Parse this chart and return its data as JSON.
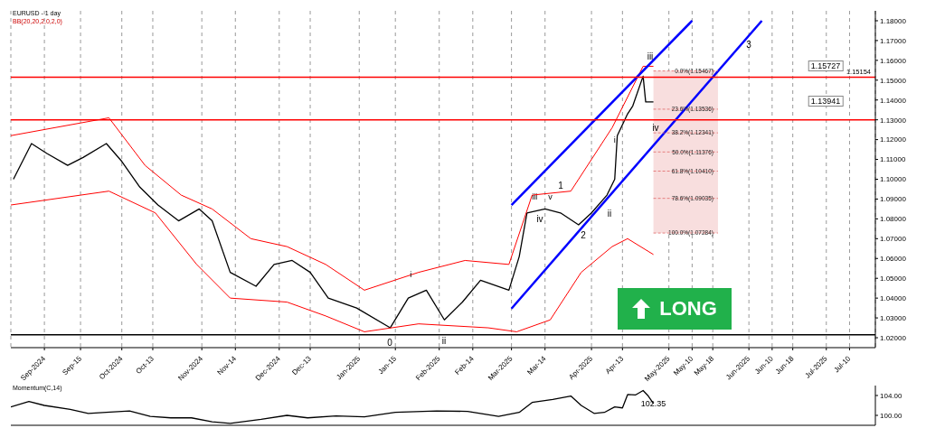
{
  "chart_data": [
    {
      "type": "line",
      "title": "EURUSD - 1 day",
      "subtitle": "BB(20,20,2,0,2,0)",
      "grid": "x",
      "xlim": [
        "2024-08-19",
        "2025-07-20"
      ],
      "xticks": [
        {
          "value": "2024-09-01",
          "label": "Sep-2024"
        },
        {
          "value": "2024-09-15",
          "label": "Sep-15"
        },
        {
          "value": "2024-10-01",
          "label": "Oct-2024"
        },
        {
          "value": "2024-10-13",
          "label": "Oct-13"
        },
        {
          "value": "2024-11-01",
          "label": "Nov-2024"
        },
        {
          "value": "2024-11-14",
          "label": "Nov-14"
        },
        {
          "value": "2024-12-01",
          "label": "Dec-2024"
        },
        {
          "value": "2024-12-13",
          "label": "Dec-13"
        },
        {
          "value": "2025-01-01",
          "label": "Jan-2025"
        },
        {
          "value": "2025-01-15",
          "label": "Jan-15"
        },
        {
          "value": "2025-02-01",
          "label": "Feb-2025"
        },
        {
          "value": "2025-02-14",
          "label": "Feb-14"
        },
        {
          "value": "2025-03-01",
          "label": "Mar-2025"
        },
        {
          "value": "2025-03-14",
          "label": "Mar-14"
        },
        {
          "value": "2025-04-01",
          "label": "Apr-2025"
        },
        {
          "value": "2025-04-13",
          "label": "Apr-13"
        },
        {
          "value": "2025-05-01",
          "label": "May-2025"
        },
        {
          "value": "2025-05-10",
          "label": "May-10"
        },
        {
          "value": "2025-05-18",
          "label": "May-18"
        },
        {
          "value": "2025-06-01",
          "label": "Jun-2025"
        },
        {
          "value": "2025-06-10",
          "label": "Jun-10"
        },
        {
          "value": "2025-06-18",
          "label": "Jun-18"
        },
        {
          "value": "2025-07-01",
          "label": "Jul-2025"
        },
        {
          "value": "2025-07-10",
          "label": "Jul-10"
        }
      ],
      "ylim": [
        1.015,
        1.185
      ],
      "yticks": [
        {
          "value": 1.02,
          "label": "1.02000"
        },
        {
          "value": 1.03,
          "label": "1.03000"
        },
        {
          "value": 1.04,
          "label": "1.04000"
        },
        {
          "value": 1.05,
          "label": "1.05000"
        },
        {
          "value": 1.06,
          "label": "1.06000"
        },
        {
          "value": 1.07,
          "label": "1.07000"
        },
        {
          "value": 1.08,
          "label": "1.08000"
        },
        {
          "value": 1.09,
          "label": "1.09000"
        },
        {
          "value": 1.1,
          "label": "1.10000"
        },
        {
          "value": 1.11,
          "label": "1.11000"
        },
        {
          "value": 1.12,
          "label": "1.12000"
        },
        {
          "value": 1.13,
          "label": "1.13000"
        },
        {
          "value": 1.14,
          "label": "1.14000"
        },
        {
          "value": 1.15,
          "label": "1.15000"
        },
        {
          "value": 1.16,
          "label": "1.16000"
        },
        {
          "value": 1.17,
          "label": "1.17000"
        },
        {
          "value": 1.18,
          "label": "1.18000"
        }
      ],
      "series": [
        {
          "color": "#000000",
          "x": [
            "2024-08-20",
            "2024-08-27",
            "2024-09-02",
            "2024-09-10",
            "2024-09-16",
            "2024-09-25",
            "2024-10-01",
            "2024-10-08",
            "2024-10-15",
            "2024-10-23",
            "2024-10-31",
            "2024-11-05",
            "2024-11-12",
            "2024-11-22",
            "2024-11-29",
            "2024-12-06",
            "2024-12-13",
            "2024-12-20",
            "2024-12-31",
            "2025-01-13",
            "2025-01-20",
            "2025-01-27",
            "2025-02-03",
            "2025-02-10",
            "2025-02-17",
            "2025-02-28",
            "2025-03-04",
            "2025-03-07",
            "2025-03-14",
            "2025-03-20",
            "2025-03-27",
            "2025-04-01",
            "2025-04-07",
            "2025-04-10",
            "2025-04-11",
            "2025-04-15",
            "2025-04-17",
            "2025-04-21",
            "2025-04-22",
            "2025-04-25"
          ],
          "values": [
            1.1,
            1.118,
            1.113,
            1.107,
            1.111,
            1.118,
            1.109,
            1.096,
            1.087,
            1.079,
            1.085,
            1.079,
            1.053,
            1.046,
            1.057,
            1.059,
            1.053,
            1.04,
            1.035,
            1.025,
            1.04,
            1.044,
            1.029,
            1.038,
            1.049,
            1.044,
            1.061,
            1.083,
            1.085,
            1.083,
            1.077,
            1.083,
            1.092,
            1.1,
            1.122,
            1.133,
            1.137,
            1.152,
            1.139,
            1.139
          ]
        },
        {
          "color": "#ff0000",
          "x": [
            "2024-08-19",
            "2024-09-26",
            "2024-10-10",
            "2024-10-24",
            "2024-11-05",
            "2024-11-20",
            "2024-12-04",
            "2024-12-19",
            "2025-01-03",
            "2025-01-24",
            "2025-02-11",
            "2025-02-28",
            "2025-03-09",
            "2025-03-24",
            "2025-04-09",
            "2025-04-21",
            "2025-04-25"
          ],
          "values": [
            1.122,
            1.131,
            1.107,
            1.092,
            1.085,
            1.07,
            1.066,
            1.057,
            1.044,
            1.053,
            1.059,
            1.057,
            1.092,
            1.094,
            1.126,
            1.157,
            1.157
          ]
        },
        {
          "color": "#ff0000",
          "x": [
            "2024-08-19",
            "2024-09-26",
            "2024-10-14",
            "2024-10-30",
            "2024-11-12",
            "2024-12-04",
            "2024-12-19",
            "2025-01-03",
            "2025-01-24",
            "2025-02-20",
            "2025-03-03",
            "2025-03-16",
            "2025-03-28",
            "2025-04-09",
            "2025-04-15",
            "2025-04-25"
          ],
          "values": [
            1.087,
            1.094,
            1.083,
            1.057,
            1.04,
            1.038,
            1.031,
            1.023,
            1.027,
            1.025,
            1.023,
            1.029,
            1.053,
            1.066,
            1.07,
            1.062
          ]
        },
        {
          "color": "#0000ff",
          "x": [
            "2025-03-01",
            "2025-05-10"
          ],
          "values": [
            1.087,
            1.18
          ]
        },
        {
          "color": "#0000ff",
          "x": [
            "2025-03-01",
            "2025-06-06"
          ],
          "values": [
            1.0347,
            1.18
          ]
        }
      ],
      "ref_lines": [
        {
          "axis": "y",
          "value": 1.15154,
          "label": "1.15154",
          "color": "#ff0000"
        },
        {
          "axis": "y",
          "value": 1.13,
          "color": "#ff0000"
        },
        {
          "axis": "y",
          "value": 1.0215,
          "color": "#000000"
        },
        {
          "axis": "y",
          "value": 1.15467,
          "label": "0.0%(1.15467)",
          "color": "#e06666",
          "line_style": "dashed"
        },
        {
          "axis": "y",
          "value": 1.13536,
          "label": "23.6%(1.13536)",
          "color": "#e06666",
          "line_style": "dashed"
        },
        {
          "axis": "y",
          "value": 1.12341,
          "label": "38.2%(1.12341)",
          "color": "#e06666",
          "line_style": "dashed"
        },
        {
          "axis": "y",
          "value": 1.11376,
          "label": "50.0%(1.11376)",
          "color": "#e06666",
          "line_style": "dashed"
        },
        {
          "axis": "y",
          "value": 1.1041,
          "label": "61.8%(1.10410)",
          "color": "#e06666",
          "line_style": "dashed"
        },
        {
          "axis": "y",
          "value": 1.09035,
          "label": "78.6%(1.09035)",
          "color": "#e06666",
          "line_style": "dashed"
        },
        {
          "axis": "y",
          "value": 1.07284,
          "label": "100.0%(1.07284)",
          "color": "#e06666",
          "line_style": "dashed"
        }
      ],
      "bands": [
        {
          "axis": "y",
          "from": 1.07284,
          "to": 1.15467,
          "color": "#f8dede"
        }
      ],
      "annotations": [
        "LONG",
        "0",
        "ii",
        "iv",
        "1",
        "2",
        "ii",
        "iv",
        "3",
        "1.15727",
        "1.13941",
        "iii",
        {
          "text": "i",
          "x": "2025-01-21",
          "y": 1.052
        },
        {
          "text": "iii",
          "x": "2025-03-10",
          "y": 1.091
        },
        {
          "text": "v",
          "x": "2025-03-16",
          "y": 1.091
        },
        {
          "text": "i",
          "x": "2025-04-10",
          "y": 1.12
        }
      ]
    },
    {
      "type": "line",
      "title": "Momentum(C,14)",
      "tick_labels": "y",
      "xlim": [
        "2024-08-19",
        "2025-07-20"
      ],
      "ylim": [
        98,
        106
      ],
      "yticks": [
        {
          "value": 100,
          "label": "100.00"
        },
        {
          "value": 104,
          "label": "104.00"
        }
      ],
      "series": [
        {
          "color": "#000000",
          "x": [
            "2024-08-19",
            "2024-08-26",
            "2024-09-01",
            "2024-09-11",
            "2024-09-18",
            "2024-09-25",
            "2024-10-04",
            "2024-10-12",
            "2024-10-20",
            "2024-10-28",
            "2024-11-05",
            "2024-11-12",
            "2024-11-24",
            "2024-12-04",
            "2024-12-12",
            "2024-12-23",
            "2025-01-03",
            "2025-01-15",
            "2025-01-31",
            "2025-02-12",
            "2025-02-24",
            "2025-03-04",
            "2025-03-09",
            "2025-03-17",
            "2025-03-24",
            "2025-03-28",
            "2025-04-02",
            "2025-04-06",
            "2025-04-10",
            "2025-04-13",
            "2025-04-15",
            "2025-04-18",
            "2025-04-21",
            "2025-04-23",
            "2025-04-25"
          ],
          "values": [
            101.7,
            102.8,
            102.0,
            101.2,
            100.4,
            100.6,
            100.9,
            99.8,
            99.5,
            99.5,
            98.7,
            98.4,
            99.2,
            100.0,
            99.5,
            99.9,
            99.7,
            100.6,
            100.9,
            100.8,
            99.8,
            100.6,
            102.6,
            103.2,
            103.9,
            102.0,
            100.4,
            100.6,
            101.7,
            101.5,
            104.2,
            104.1,
            105.0,
            103.9,
            102.4
          ]
        }
      ],
      "annotations": [
        {
          "text": "102.35",
          "x": "2025-04-25",
          "y": 102.35
        }
      ]
    }
  ]
}
